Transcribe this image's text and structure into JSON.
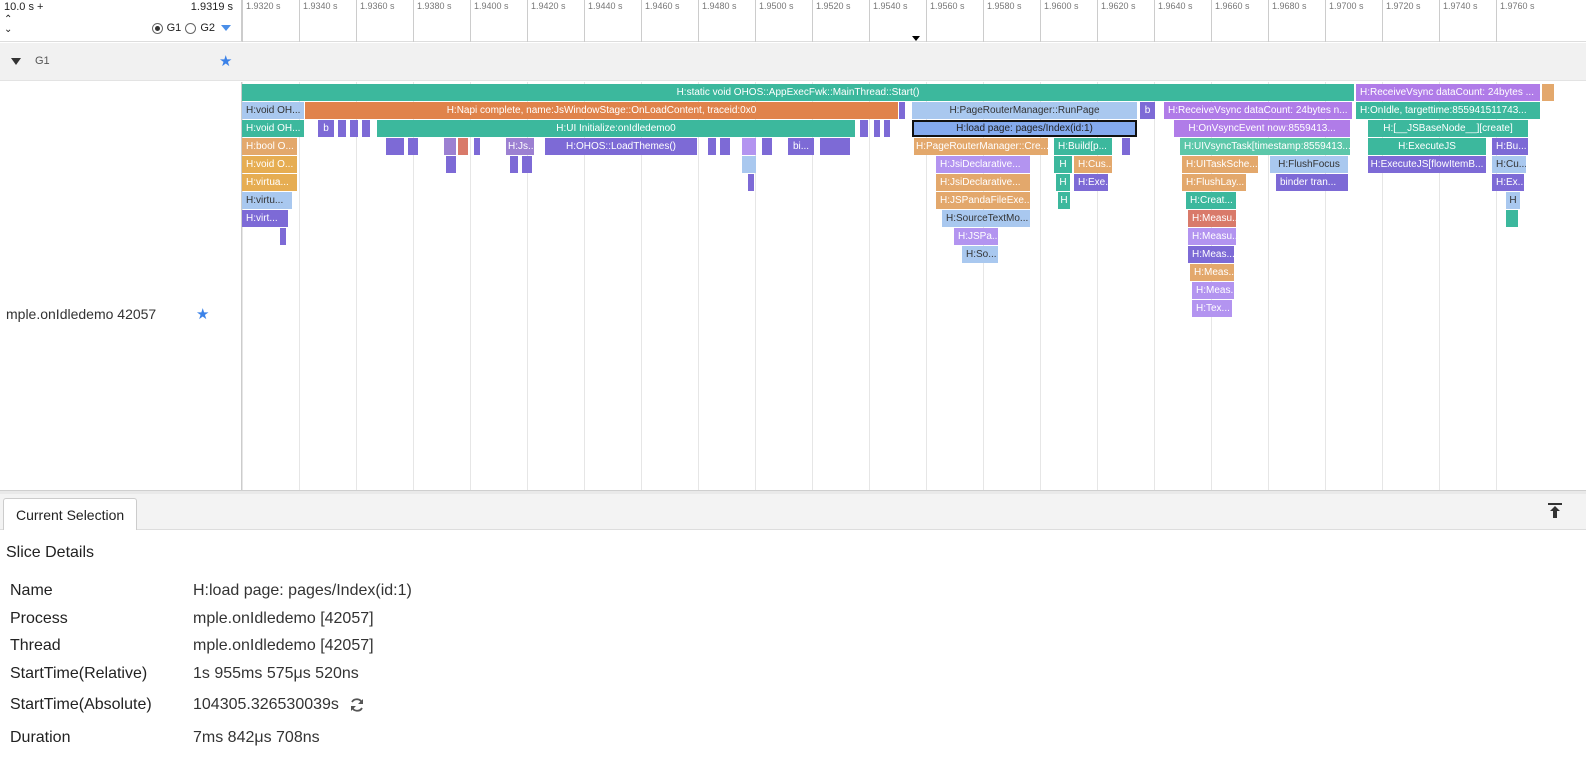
{
  "header": {
    "range_start": "10.0 s +",
    "cursor_time": "1.9319 s",
    "radio_g1": "G1",
    "radio_g2": "G2"
  },
  "ruler": {
    "ticks": [
      "1.9320 s",
      "1.9340 s",
      "1.9360 s",
      "1.9380 s",
      "1.9400 s",
      "1.9420 s",
      "1.9440 s",
      "1.9460 s",
      "1.9480 s",
      "1.9500 s",
      "1.9520 s",
      "1.9540 s",
      "1.9560 s",
      "1.9580 s",
      "1.9600 s",
      "1.9620 s",
      "1.9640 s",
      "1.9660 s",
      "1.9680 s",
      "1.9700 s",
      "1.9720 s",
      "1.9740 s",
      "1.9760 s"
    ]
  },
  "group": {
    "label": "G1"
  },
  "track": {
    "process_name": "mple.onIdledemo 42057"
  },
  "slices": {
    "main_start": "H:static void OHOS::AppExecFwk::MainThread::Start()",
    "receive_vsync_top": "H:ReceiveVsync dataCount: 24bytes ...",
    "void_oh_1": "H:void OH...",
    "napi_complete": "H:Napi complete, name:JsWindowStage::OnLoadContent, traceid:0x0",
    "page_router_run": "H:PageRouterManager::RunPage",
    "b1": "b",
    "receive_vsync_2": "H:ReceiveVsync dataCount: 24bytes n...",
    "onidle": "H:OnIdle, targettime:855941511743...",
    "void_oh_2": "H:void OH...",
    "b2": "b",
    "ui_initialize": "H:UI Initialize:onIdledemo0",
    "load_page": "H:load page: pages/Index(id:1)",
    "onvsync_event": "H:OnVsyncEvent now:8559413...",
    "jsbasenode": "H:[__JSBaseNode__][create]",
    "bool_o": "H:bool O...",
    "h_js": "H:Js...",
    "load_themes": "H:OHOS::LoadThemes()",
    "bi": "bi...",
    "page_router_cre": "H:PageRouterManager::Cre...",
    "build_p": "H:Build[p...",
    "ui_vsync_task": "H:UIVsyncTask[timestamp:8559413...",
    "execute_js": "H:ExecuteJS",
    "h_bu": "H:Bu...",
    "void_o2": "H:void O...",
    "jsi_decl_1": "H:JsiDeclarative...",
    "h_short": "H",
    "h_cus": "H:Cus...",
    "ui_task_sche": "H:UITaskSche...",
    "flush_focus": "H:FlushFocus",
    "execute_js_flow": "H:ExecuteJS[flowItemB...",
    "h_cu": "H:Cu...",
    "virtua": "H:virtua...",
    "jsi_decl_2": "H:JsiDeclarative...",
    "h_exe": "H:Exe...",
    "flush_lay": "H:FlushLay...",
    "binder_tran": "binder tran...",
    "h_ex": "H:Ex...",
    "virtu": "H:virtu...",
    "jspanda": "H:JSPandaFileExe...",
    "h_creat": "H:Creat...",
    "h_h": "H",
    "virt": "H:virt...",
    "source_text": "H:SourceTextMo...",
    "measu_1": "H:Measu...",
    "jspa": "H:JSPa...",
    "measu_2": "H:Measu...",
    "so": "H:So...",
    "meas_1": "H:Meas...",
    "meas_2": "H:Meas...",
    "meas_3": "H:Meas...",
    "tex": "H:Tex..."
  },
  "panel": {
    "tab_label": "Current Selection",
    "title": "Slice Details",
    "rows": [
      {
        "key": "Name",
        "value": "H:load page: pages/Index(id:1)"
      },
      {
        "key": "Process",
        "value": "mple.onIdledemo [42057]"
      },
      {
        "key": "Thread",
        "value": "mple.onIdledemo [42057]"
      },
      {
        "key": "StartTime(Relative)",
        "value": "1s 955ms 575μs 520ns"
      },
      {
        "key": "StartTime(Absolute)",
        "value": "104305.326530039s"
      },
      {
        "key": "Duration",
        "value": "7ms 842μs 708ns"
      }
    ]
  },
  "icons": {
    "star": "star-icon",
    "refresh": "refresh-icon",
    "pin": "pin-top-icon"
  },
  "colors": {
    "accent": "#3b82e8",
    "teal": "#3cb89d",
    "orange": "#e0834b",
    "purple": "#8a6ad8",
    "selected_slice": "#84aaee"
  }
}
